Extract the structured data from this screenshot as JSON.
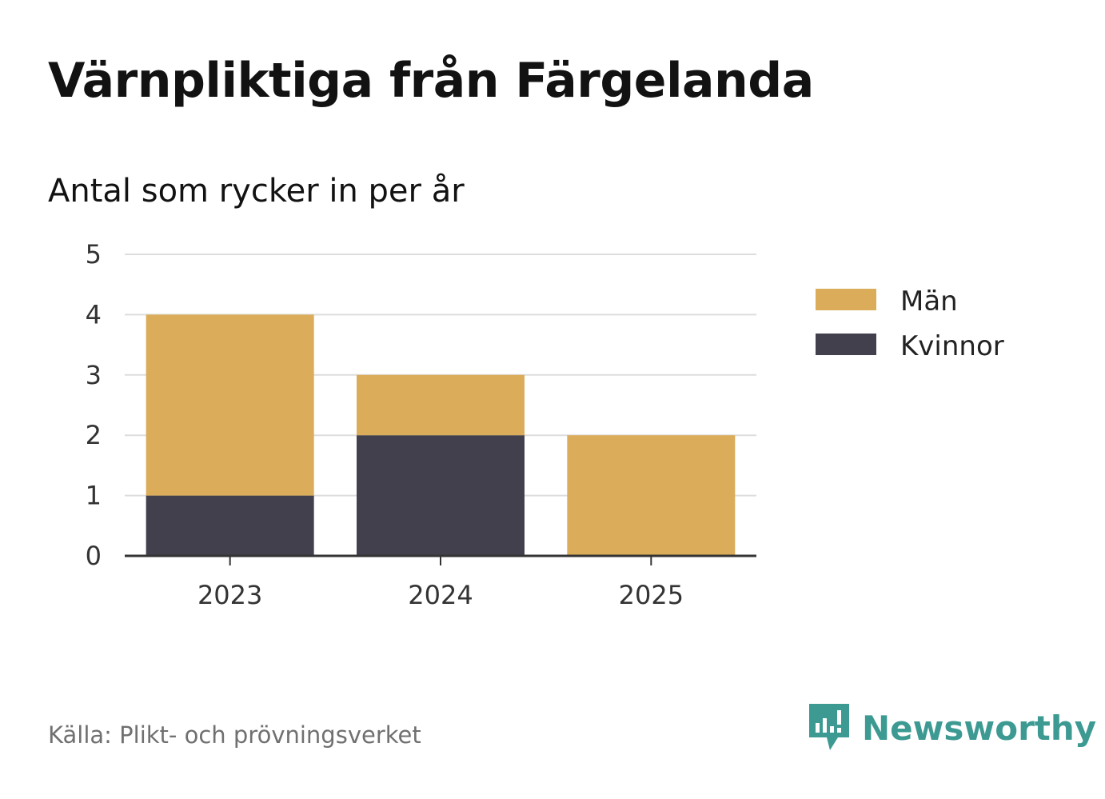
{
  "header": {
    "title": "Värnpliktiga från Färgelanda",
    "subtitle": "Antal som rycker in per år"
  },
  "footer": {
    "source": "Källa: Plikt- och prövningsverket",
    "brand": "Newsworthy"
  },
  "colors": {
    "men": "#dbac5a",
    "women": "#43404d",
    "grid": "#dddddd",
    "axis": "#333333",
    "brand": "#3d9a93"
  },
  "chart_data": {
    "type": "bar",
    "stacked": true,
    "title": "Värnpliktiga från Färgelanda",
    "subtitle": "Antal som rycker in per år",
    "xlabel": "",
    "ylabel": "",
    "categories": [
      "2023",
      "2024",
      "2025"
    ],
    "series": [
      {
        "name": "Kvinnor",
        "values": [
          1,
          2,
          0
        ],
        "color": "#43404d"
      },
      {
        "name": "Män",
        "values": [
          3,
          1,
          2
        ],
        "color": "#dbac5a"
      }
    ],
    "ylim": [
      0,
      5
    ],
    "yticks": [
      "0",
      "1",
      "2",
      "3",
      "4",
      "5"
    ],
    "grid": true,
    "legend": {
      "position": "top-right",
      "entries": [
        "Män",
        "Kvinnor"
      ]
    }
  }
}
